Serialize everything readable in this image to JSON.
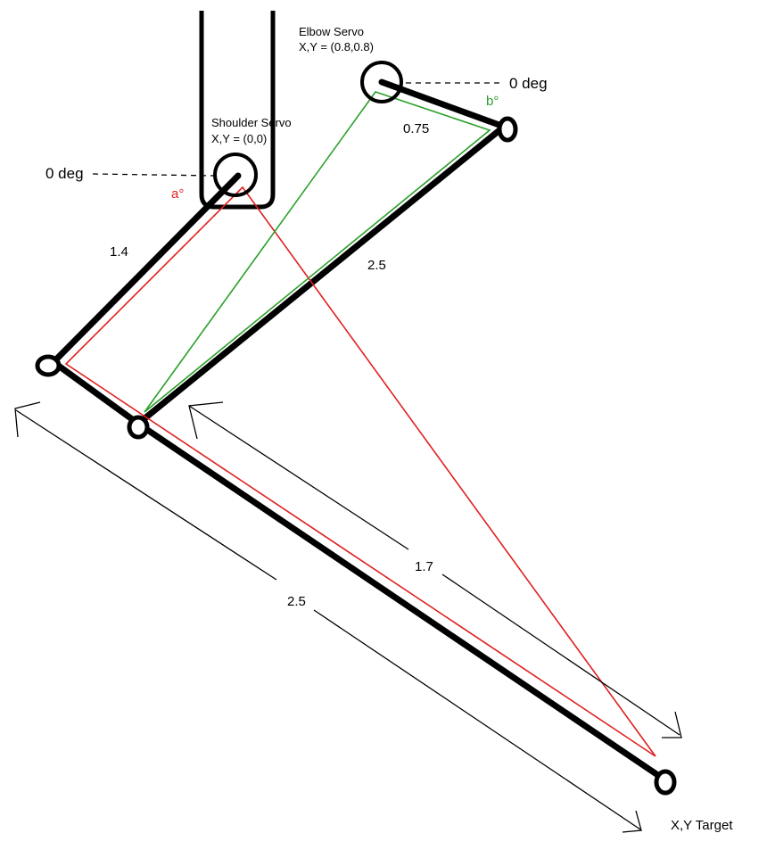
{
  "labels": {
    "elbow_servo_title": "Elbow Servo",
    "elbow_servo_xy": "X,Y = (0.8,0.8)",
    "shoulder_servo_title": "Shoulder Servo",
    "shoulder_servo_xy": "X,Y = (0,0)",
    "elbow_zero": "0 deg",
    "shoulder_zero": "0 deg",
    "angle_a": "a°",
    "angle_b": "b°",
    "len_upper": "1.4",
    "len_short": "0.75",
    "len_long": "2.5",
    "len_diagonal": "1.7",
    "len_forearm": "2.5",
    "target": "X,Y Target"
  },
  "colors": {
    "links": "#000000",
    "red_triangle": "#e02020",
    "green_triangle": "#2aa02a",
    "angle_a": "#e02020",
    "angle_b": "#2aa02a"
  }
}
